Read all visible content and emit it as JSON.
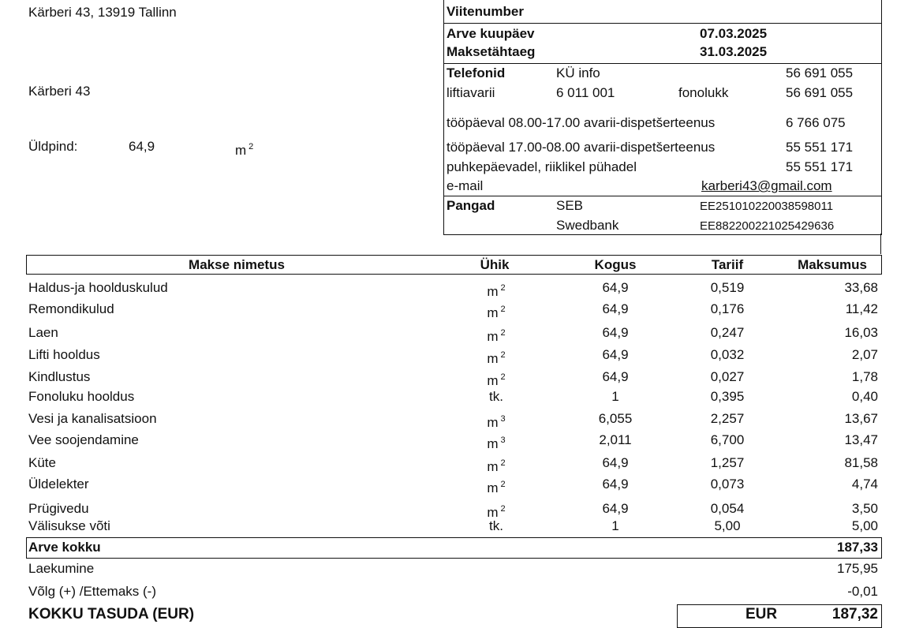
{
  "address": {
    "line1": "Kärberi 43, 13919 Tallinn",
    "building": "Kärberi 43",
    "area_label": "Üldpind:",
    "area_value": "64,9",
    "area_unit": "m",
    "area_unit_sup": "2"
  },
  "info": {
    "ref_label": "Viitenumber",
    "invoice_date_label": "Arve kuupäev",
    "invoice_date": "07.03.2025",
    "due_label": "Maksetähtaeg",
    "due_date": "31.03.2025",
    "phones_label": "Telefonid",
    "ku_info_label": "KÜ info",
    "ku_info_phone": "56 691 055",
    "lift_label": "liftiavarii",
    "lift_phone": "6 011 001",
    "intercom_label": "fonolukk",
    "intercom_phone": "56 691 055",
    "day_label": "tööpäeval 08.00-17.00 avarii-dispetšerteenus",
    "day_phone": "6 766 075",
    "night_label": "tööpäeval 17.00-08.00 avarii-dispetšerteenus",
    "night_phone": "55 551 171",
    "holiday_label": "puhkepäevadel, riiklikel pühadel",
    "holiday_phone": "55 551 171",
    "email_label": "e-mail",
    "email": "karberi43@gmail.com",
    "banks_label": "Pangad",
    "banks": [
      {
        "name": "SEB",
        "iban": "EE251010220038598011"
      },
      {
        "name": "Swedbank",
        "iban": "EE882200221025429636"
      }
    ]
  },
  "table": {
    "headers": [
      "Makse nimetus",
      "Ühik",
      "Kogus",
      "Tariif",
      "Maksumus"
    ],
    "rows": [
      {
        "name": "Haldus-ja hoolduskulud",
        "unit": "m",
        "unit_sup": "2",
        "quantity": "64,9",
        "tariff": "0,519",
        "cost": "33,68"
      },
      {
        "name": "Remondikulud",
        "unit": "m",
        "unit_sup": "2",
        "quantity": "64,9",
        "tariff": "0,176",
        "cost": "11,42"
      },
      {
        "name": "Laen",
        "unit": "m",
        "unit_sup": "2",
        "quantity": "64,9",
        "tariff": "0,247",
        "cost": "16,03"
      },
      {
        "name": "Lifti hooldus",
        "unit": "m",
        "unit_sup": "2",
        "quantity": "64,9",
        "tariff": "0,032",
        "cost": "2,07"
      },
      {
        "name": "Kindlustus",
        "unit": "m",
        "unit_sup": "2",
        "quantity": "64,9",
        "tariff": "0,027",
        "cost": "1,78"
      },
      {
        "name": "Fonoluku hooldus",
        "unit": "tk.",
        "quantity": "1",
        "tariff": "0,395",
        "cost": "0,40"
      },
      {
        "name": "Vesi ja kanalisatsioon",
        "unit": "m",
        "unit_sup": "3",
        "quantity": "6,055",
        "tariff": "2,257",
        "cost": "13,67"
      },
      {
        "name": "Vee soojendamine",
        "unit": "m",
        "unit_sup": "3",
        "quantity": "2,011",
        "tariff": "6,700",
        "cost": "13,47"
      },
      {
        "name": "Küte",
        "unit": "m",
        "unit_sup": "2",
        "quantity": "64,9",
        "tariff": "1,257",
        "cost": "81,58"
      },
      {
        "name": "Üldelekter",
        "unit": "m",
        "unit_sup": "2",
        "quantity": "64,9",
        "tariff": "0,073",
        "cost": "4,74"
      },
      {
        "name": "Prügivedu",
        "unit": "m",
        "unit_sup": "2",
        "quantity": "64,9",
        "tariff": "0,054",
        "cost": "3,50"
      },
      {
        "name": "Välisukse võti",
        "unit": "tk.",
        "quantity": "1",
        "tariff": "5,00",
        "cost": "5,00"
      }
    ]
  },
  "totals": {
    "invoice_total_label": "Arve kokku",
    "invoice_total": "187,33",
    "received_label": "Laekumine",
    "received": "175,95",
    "balance_label": "Võlg (+) /Ettemaks (-)",
    "balance": "-0,01",
    "to_pay_label": "KOKKU TASUDA (EUR)",
    "to_pay_currency": "EUR",
    "to_pay": "187,32"
  }
}
